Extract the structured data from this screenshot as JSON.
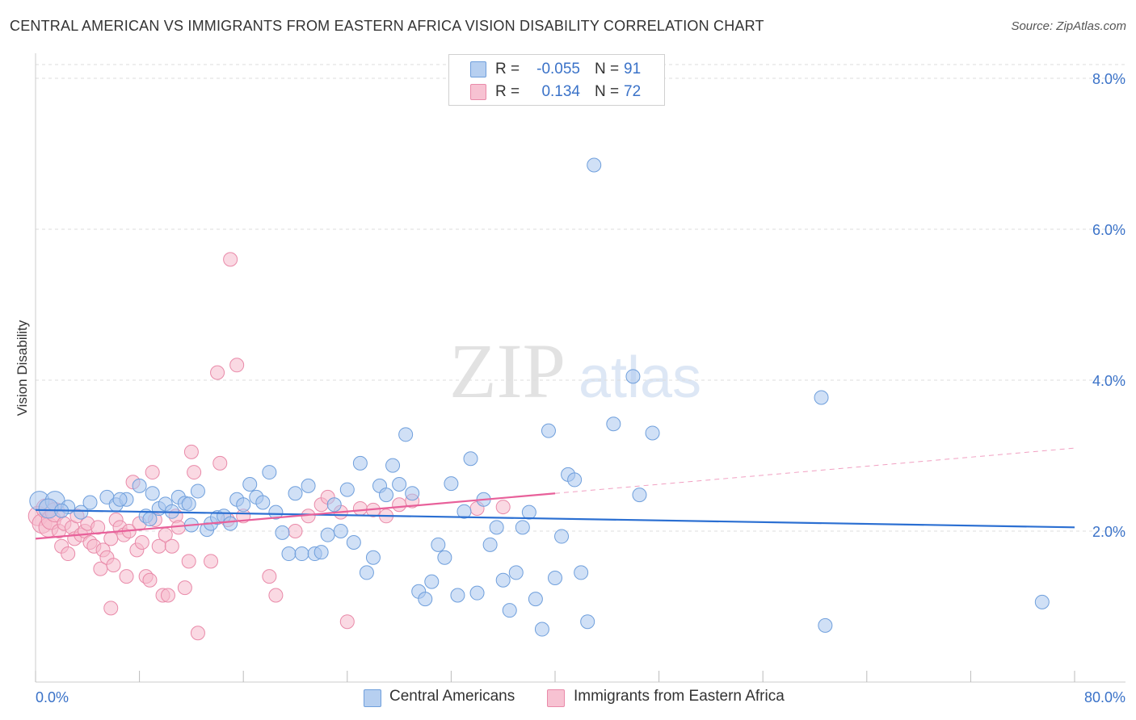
{
  "title": "CENTRAL AMERICAN VS IMMIGRANTS FROM EASTERN AFRICA VISION DISABILITY CORRELATION CHART",
  "source": "Source: ZipAtlas.com",
  "watermark": {
    "zip": "ZIP",
    "atlas": "atlas"
  },
  "legend_top": {
    "rows": [
      {
        "r_label": "R =",
        "r_value": "-0.055",
        "n_label": "N =",
        "n_value": "91"
      },
      {
        "r_label": "R =",
        "r_value": "0.134",
        "n_label": "N =",
        "n_value": "72"
      }
    ]
  },
  "legend_bottom": {
    "series1": "Central Americans",
    "series2": "Immigrants from Eastern Africa"
  },
  "colors": {
    "blue_fill": "#a9c6ee",
    "blue_stroke": "#6f9fdc",
    "blue_line": "#2b6fd2",
    "pink_fill": "#f5b9cc",
    "pink_stroke": "#e98aa9",
    "pink_line": "#e8609a",
    "axis_label": "#3a72c8",
    "grid": "#dddddd"
  },
  "chart_data": {
    "type": "scatter",
    "title": "CENTRAL AMERICAN VS IMMIGRANTS FROM EASTERN AFRICA VISION DISABILITY CORRELATION CHART",
    "xlabel": "",
    "ylabel": "Vision Disability",
    "xlim": [
      0,
      80
    ],
    "ylim": [
      0,
      8.0
    ],
    "x_tick_labels": [
      "0.0%",
      "80.0%"
    ],
    "y_tick_labels": [
      "2.0%",
      "4.0%",
      "6.0%",
      "8.0%"
    ],
    "y_ticks": [
      2.0,
      4.0,
      6.0,
      8.0
    ],
    "grid": true,
    "series": [
      {
        "name": "Central Americans",
        "trend": {
          "x": [
            0,
            80
          ],
          "y": [
            2.28,
            2.05
          ],
          "style": "solid"
        },
        "points": [
          [
            0.3,
            2.4
          ],
          [
            1.5,
            2.4
          ],
          [
            2.5,
            2.32
          ],
          [
            1.0,
            2.3
          ],
          [
            4.2,
            2.38
          ],
          [
            5.5,
            2.45
          ],
          [
            6.2,
            2.35
          ],
          [
            7.0,
            2.42
          ],
          [
            8.0,
            2.6
          ],
          [
            8.5,
            2.2
          ],
          [
            9.0,
            2.5
          ],
          [
            9.5,
            2.3
          ],
          [
            10.0,
            2.36
          ],
          [
            11.0,
            2.45
          ],
          [
            11.5,
            2.37
          ],
          [
            12.0,
            2.08
          ],
          [
            12.5,
            2.53
          ],
          [
            13.2,
            2.02
          ],
          [
            13.5,
            2.1
          ],
          [
            14.0,
            2.18
          ],
          [
            14.5,
            2.2
          ],
          [
            15.0,
            2.1
          ],
          [
            15.5,
            2.42
          ],
          [
            16.0,
            2.35
          ],
          [
            16.5,
            2.62
          ],
          [
            17.0,
            2.45
          ],
          [
            17.5,
            2.38
          ],
          [
            18.0,
            2.78
          ],
          [
            18.5,
            2.25
          ],
          [
            19.0,
            1.98
          ],
          [
            19.5,
            1.7
          ],
          [
            20.0,
            2.5
          ],
          [
            20.5,
            1.7
          ],
          [
            21.0,
            2.6
          ],
          [
            21.5,
            1.7
          ],
          [
            22.0,
            1.72
          ],
          [
            22.5,
            1.95
          ],
          [
            23.0,
            2.35
          ],
          [
            23.5,
            2.0
          ],
          [
            24.0,
            2.55
          ],
          [
            24.5,
            1.85
          ],
          [
            25.0,
            2.9
          ],
          [
            25.5,
            1.45
          ],
          [
            26.0,
            1.65
          ],
          [
            26.5,
            2.6
          ],
          [
            27.0,
            2.48
          ],
          [
            27.5,
            2.87
          ],
          [
            28.0,
            2.62
          ],
          [
            28.5,
            3.28
          ],
          [
            29.0,
            2.5
          ],
          [
            29.5,
            1.2
          ],
          [
            30.0,
            1.1
          ],
          [
            30.5,
            1.33
          ],
          [
            31.0,
            1.82
          ],
          [
            31.5,
            1.65
          ],
          [
            32.0,
            2.63
          ],
          [
            32.5,
            1.15
          ],
          [
            33.0,
            2.26
          ],
          [
            33.5,
            2.96
          ],
          [
            34.0,
            1.18
          ],
          [
            34.5,
            2.42
          ],
          [
            35.0,
            1.82
          ],
          [
            35.5,
            2.05
          ],
          [
            36.0,
            1.35
          ],
          [
            36.5,
            0.95
          ],
          [
            37.0,
            1.45
          ],
          [
            37.5,
            2.05
          ],
          [
            38.0,
            2.25
          ],
          [
            38.5,
            1.1
          ],
          [
            39.0,
            0.7
          ],
          [
            39.5,
            3.33
          ],
          [
            40.0,
            1.38
          ],
          [
            40.5,
            1.93
          ],
          [
            41.0,
            2.75
          ],
          [
            41.5,
            2.68
          ],
          [
            42.0,
            1.45
          ],
          [
            42.5,
            0.8
          ],
          [
            43.0,
            6.85
          ],
          [
            44.5,
            3.42
          ],
          [
            46.0,
            4.05
          ],
          [
            46.5,
            2.48
          ],
          [
            47.5,
            3.3
          ],
          [
            60.5,
            3.77
          ],
          [
            60.8,
            0.75
          ],
          [
            77.5,
            1.06
          ],
          [
            2.0,
            2.27
          ],
          [
            3.5,
            2.25
          ],
          [
            6.5,
            2.42
          ],
          [
            8.8,
            2.16
          ],
          [
            10.5,
            2.26
          ],
          [
            11.8,
            2.36
          ]
        ]
      },
      {
        "name": "Immigrants from Eastern Africa",
        "trend": {
          "x": [
            0,
            40
          ],
          "y": [
            1.9,
            2.5
          ],
          "style": "solid",
          "extended": {
            "x": [
              40,
              80
            ],
            "y": [
              2.5,
              3.1
            ],
            "style": "dashed"
          }
        },
        "points": [
          [
            0.2,
            2.2
          ],
          [
            0.5,
            2.1
          ],
          [
            0.8,
            2.3
          ],
          [
            1.0,
            2.05
          ],
          [
            1.2,
            2.15
          ],
          [
            1.5,
            2.25
          ],
          [
            1.8,
            2.0
          ],
          [
            2.0,
            1.8
          ],
          [
            2.2,
            2.1
          ],
          [
            2.5,
            1.7
          ],
          [
            2.8,
            2.05
          ],
          [
            3.0,
            1.9
          ],
          [
            3.2,
            2.2
          ],
          [
            3.5,
            1.95
          ],
          [
            3.8,
            2.0
          ],
          [
            4.0,
            2.1
          ],
          [
            4.2,
            1.85
          ],
          [
            4.5,
            1.8
          ],
          [
            4.8,
            2.05
          ],
          [
            5.0,
            1.5
          ],
          [
            5.2,
            1.75
          ],
          [
            5.5,
            1.65
          ],
          [
            5.8,
            1.9
          ],
          [
            6.0,
            1.55
          ],
          [
            6.2,
            2.15
          ],
          [
            6.5,
            2.05
          ],
          [
            6.8,
            1.95
          ],
          [
            7.0,
            1.4
          ],
          [
            7.2,
            2.0
          ],
          [
            7.5,
            2.65
          ],
          [
            7.8,
            1.75
          ],
          [
            8.0,
            2.1
          ],
          [
            8.2,
            1.85
          ],
          [
            8.5,
            1.4
          ],
          [
            8.8,
            1.35
          ],
          [
            9.0,
            2.78
          ],
          [
            9.2,
            2.15
          ],
          [
            9.5,
            1.8
          ],
          [
            9.8,
            1.15
          ],
          [
            10.0,
            1.95
          ],
          [
            10.2,
            1.15
          ],
          [
            10.5,
            1.8
          ],
          [
            10.8,
            2.2
          ],
          [
            11.0,
            2.05
          ],
          [
            11.5,
            1.25
          ],
          [
            11.8,
            1.6
          ],
          [
            12.0,
            3.05
          ],
          [
            12.2,
            2.78
          ],
          [
            12.5,
            0.65
          ],
          [
            13.5,
            1.6
          ],
          [
            14.0,
            4.1
          ],
          [
            14.2,
            2.9
          ],
          [
            14.8,
            2.15
          ],
          [
            15.0,
            5.6
          ],
          [
            15.5,
            4.2
          ],
          [
            16.0,
            2.2
          ],
          [
            18.0,
            1.4
          ],
          [
            18.5,
            1.15
          ],
          [
            20.0,
            2.0
          ],
          [
            21.0,
            2.2
          ],
          [
            22.0,
            2.35
          ],
          [
            22.5,
            2.45
          ],
          [
            23.5,
            2.25
          ],
          [
            24.0,
            0.8
          ],
          [
            25.0,
            2.3
          ],
          [
            26.0,
            2.28
          ],
          [
            27.0,
            2.2
          ],
          [
            28.0,
            2.35
          ],
          [
            29.0,
            2.4
          ],
          [
            34.0,
            2.3
          ],
          [
            36.0,
            2.32
          ],
          [
            5.8,
            0.98
          ]
        ]
      }
    ]
  },
  "axes": {
    "x_left_label": "0.0%",
    "x_right_label": "80.0%",
    "y_label": "Vision Disability"
  }
}
